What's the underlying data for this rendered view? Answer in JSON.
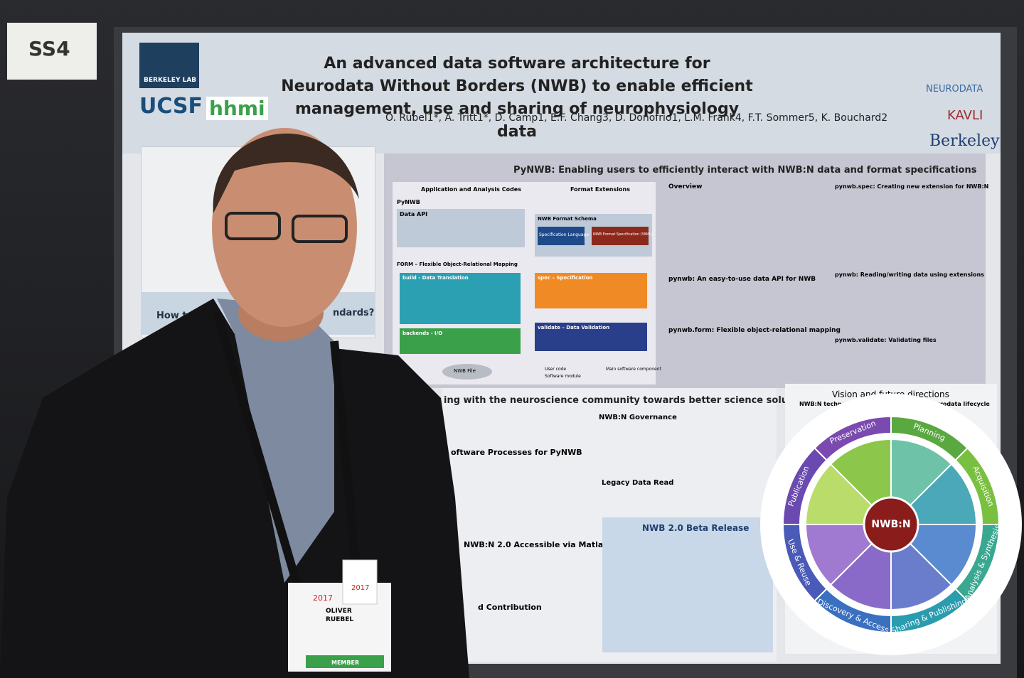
{
  "sign": "SS4",
  "logos": {
    "berkeley_lab": "BERKELEY LAB",
    "ucsf": "UCSF",
    "hhmi": "hhmi",
    "neurodata": "NEURODATA",
    "kavli": "KAVLI",
    "berkeley": "Berkeley"
  },
  "header": {
    "title": "An advanced data software architecture for Neurodata Without Borders (NWB) to enable efficient management, use and sharing of neurophysiology data",
    "authors": "O. Rübel1*, A. Tritt1*, D. Camp1, E.F. Chang3, D. Donofrio1, L.M. Frank4, F.T. Sommer5, K. Bouchard2"
  },
  "left_column": {
    "heading": "How t",
    "heading_end": "ndards?"
  },
  "pynwb_panel": {
    "title": "PyNWB: Enabling users to efficiently interact with NWB:N data and format specifications",
    "diagram": {
      "app_codes": "Application and Analysis Codes",
      "format_extensions": "Format Extensions",
      "pynwb": "PyNWB",
      "data_api": "Data API",
      "format_schema": "NWB Format Schema",
      "spec_language": "Specification Language",
      "format_spec": "NWB Format Specification (YAML)",
      "form": "FORM – Flexible Object-Relational Mapping",
      "build": "build - Data Translation",
      "spec": "spec – Specification",
      "validate": "validate – Data Validation",
      "backends": "backends - I/O",
      "nwb_file": "NWB File",
      "legend_user": "User code",
      "legend_module": "Software module",
      "legend_main": "Main software component"
    },
    "sections": [
      "Overview",
      "pynwb: An easy-to-use data API for NWB",
      "pynwb.form: Flexible object-relational mapping",
      "pynwb.spec: Creating new extension for NWB:N",
      "pynwb: Reading/writing data using extensions",
      "pynwb.validate: Validating files"
    ]
  },
  "community_panel": {
    "title": "ing with the neuroscience community towards better science solutions",
    "sections": [
      "oftware Processes for PyNWB",
      "NWB:N 2.0 Accessible via Matlab",
      "d Contribution",
      "NWB:N Governance",
      "Legacy Data Read",
      "NWB 2.0 Beta Release"
    ]
  },
  "vision_panel": {
    "title": "Vision and future directions",
    "subtitle": "NWB:N technologies at the heart of the neurodata lifecycle",
    "center": "NWB:N",
    "stages": [
      "Preservation",
      "Planning",
      "Acquisition",
      "Analysis & Synthesis",
      "Sharing & Publishing",
      "Discovery & Access",
      "Use & Reuse",
      "Publication"
    ]
  },
  "badge": {
    "year": "2017",
    "first_name": "OLIVER",
    "last_name": "RUEBEL",
    "member": "MEMBER"
  }
}
